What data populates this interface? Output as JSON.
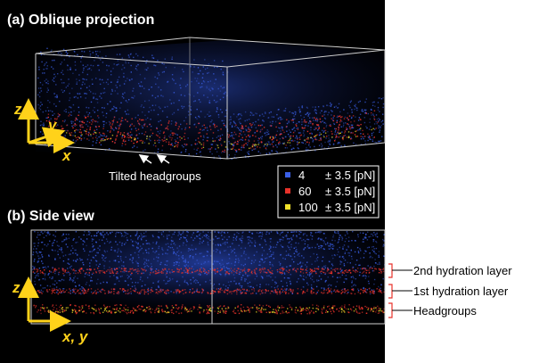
{
  "panels": {
    "a": {
      "title": "(a) Oblique projection",
      "axis_z": "z",
      "axis_y": "y",
      "axis_x": "x"
    },
    "b": {
      "title": "(b) Side view",
      "axis_z": "z",
      "axis_xy": "x, y"
    }
  },
  "annotation": "Tilted headgroups",
  "legend": [
    {
      "value": "4",
      "range": "± 3.5 [pN]",
      "color": "#3a5fe6"
    },
    {
      "value": "60",
      "range": "± 3.5 [pN]",
      "color": "#e8322a"
    },
    {
      "value": "100",
      "range": "± 3.5 [pN]",
      "color": "#f2e22a"
    }
  ],
  "layers": {
    "second": "2nd hydration layer",
    "first": "1st hydration layer",
    "head": "Headgroups"
  },
  "colors": {
    "background": "#000000",
    "axis": "#ffd21a",
    "blue": "#3a5fe6",
    "red": "#e8322a",
    "yellow": "#f2e22a"
  }
}
